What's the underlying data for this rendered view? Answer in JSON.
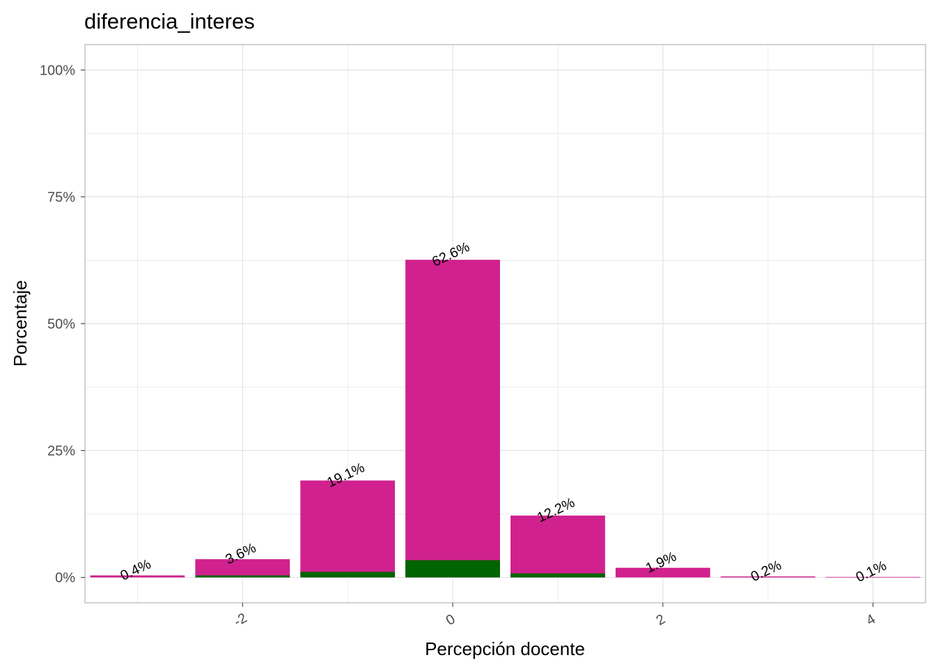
{
  "chart_data": {
    "type": "bar",
    "title": "diferencia_interes",
    "xlabel": "Percepción docente",
    "ylabel": "Porcentaje",
    "x": [
      -3,
      -2,
      -1,
      0,
      1,
      2,
      3,
      4
    ],
    "series": [
      {
        "values": [
          0.4,
          3.6,
          19.1,
          62.6,
          12.2,
          1.9,
          0.2,
          0.1
        ],
        "color": "#D0218F"
      },
      {
        "values": [
          0.0,
          0.4,
          1.1,
          3.4,
          0.8,
          0.0,
          0.0,
          0.0
        ],
        "color": "#006400"
      }
    ],
    "data_labels": [
      "0.4%",
      "3.6%",
      "19.1%",
      "62.6%",
      "12.2%",
      "1.9%",
      "0.2%",
      "0.1%"
    ],
    "x_ticks": [
      -2,
      0,
      2,
      4
    ],
    "x_tick_labels": [
      "-2",
      "0",
      "2",
      "4"
    ],
    "y_ticks": [
      0,
      25,
      50,
      75,
      100
    ],
    "y_tick_labels": [
      "0%",
      "25%",
      "50%",
      "75%",
      "100%"
    ],
    "xlim": [
      -3.5,
      4.5
    ],
    "ylim": [
      -5,
      105
    ],
    "grid": true,
    "colors": {
      "panel_border": "#B3B3B3",
      "grid": "#DEDEDE"
    }
  }
}
